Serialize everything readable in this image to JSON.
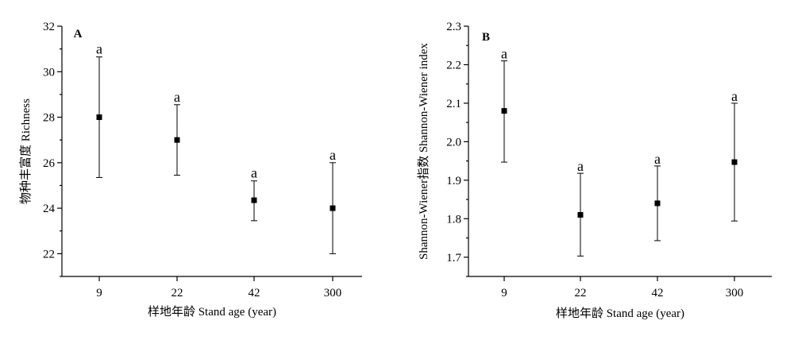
{
  "chart_data": [
    {
      "type": "scatter",
      "panel_label": "A",
      "categories": [
        "9",
        "22",
        "42",
        "300"
      ],
      "values": [
        28.0,
        27.0,
        24.35,
        24.0
      ],
      "error_lower": [
        25.35,
        25.45,
        23.45,
        22.0
      ],
      "error_upper": [
        30.65,
        28.55,
        25.2,
        26.0
      ],
      "significance": [
        "a",
        "a",
        "a",
        "a"
      ],
      "xlabel": "样地年龄 Stand age (year)",
      "ylabel": "物种丰富度 Richness",
      "ylim": [
        21,
        32
      ],
      "yticks": [
        22,
        24,
        26,
        28,
        30,
        32
      ],
      "grid": false,
      "legend": false
    },
    {
      "type": "scatter",
      "panel_label": "B",
      "categories": [
        "9",
        "22",
        "42",
        "300"
      ],
      "values": [
        2.08,
        1.81,
        1.84,
        1.947
      ],
      "error_lower": [
        1.947,
        1.703,
        1.743,
        1.794
      ],
      "error_upper": [
        2.21,
        1.918,
        1.937,
        2.1
      ],
      "significance": [
        "a",
        "a",
        "a",
        "a"
      ],
      "xlabel": "样地年龄 Stand age (year)",
      "ylabel": "Shannon-Wiener指数 Shannon-Wiener index",
      "ylim": [
        1.65,
        2.3
      ],
      "yticks": [
        1.7,
        1.8,
        1.9,
        2.0,
        2.1,
        2.2,
        2.3
      ],
      "ytick_labels": [
        "1.7",
        "1.8",
        "1.9",
        "2.0",
        "2.1",
        "2.2",
        "2.3"
      ],
      "grid": false,
      "legend": false
    }
  ]
}
